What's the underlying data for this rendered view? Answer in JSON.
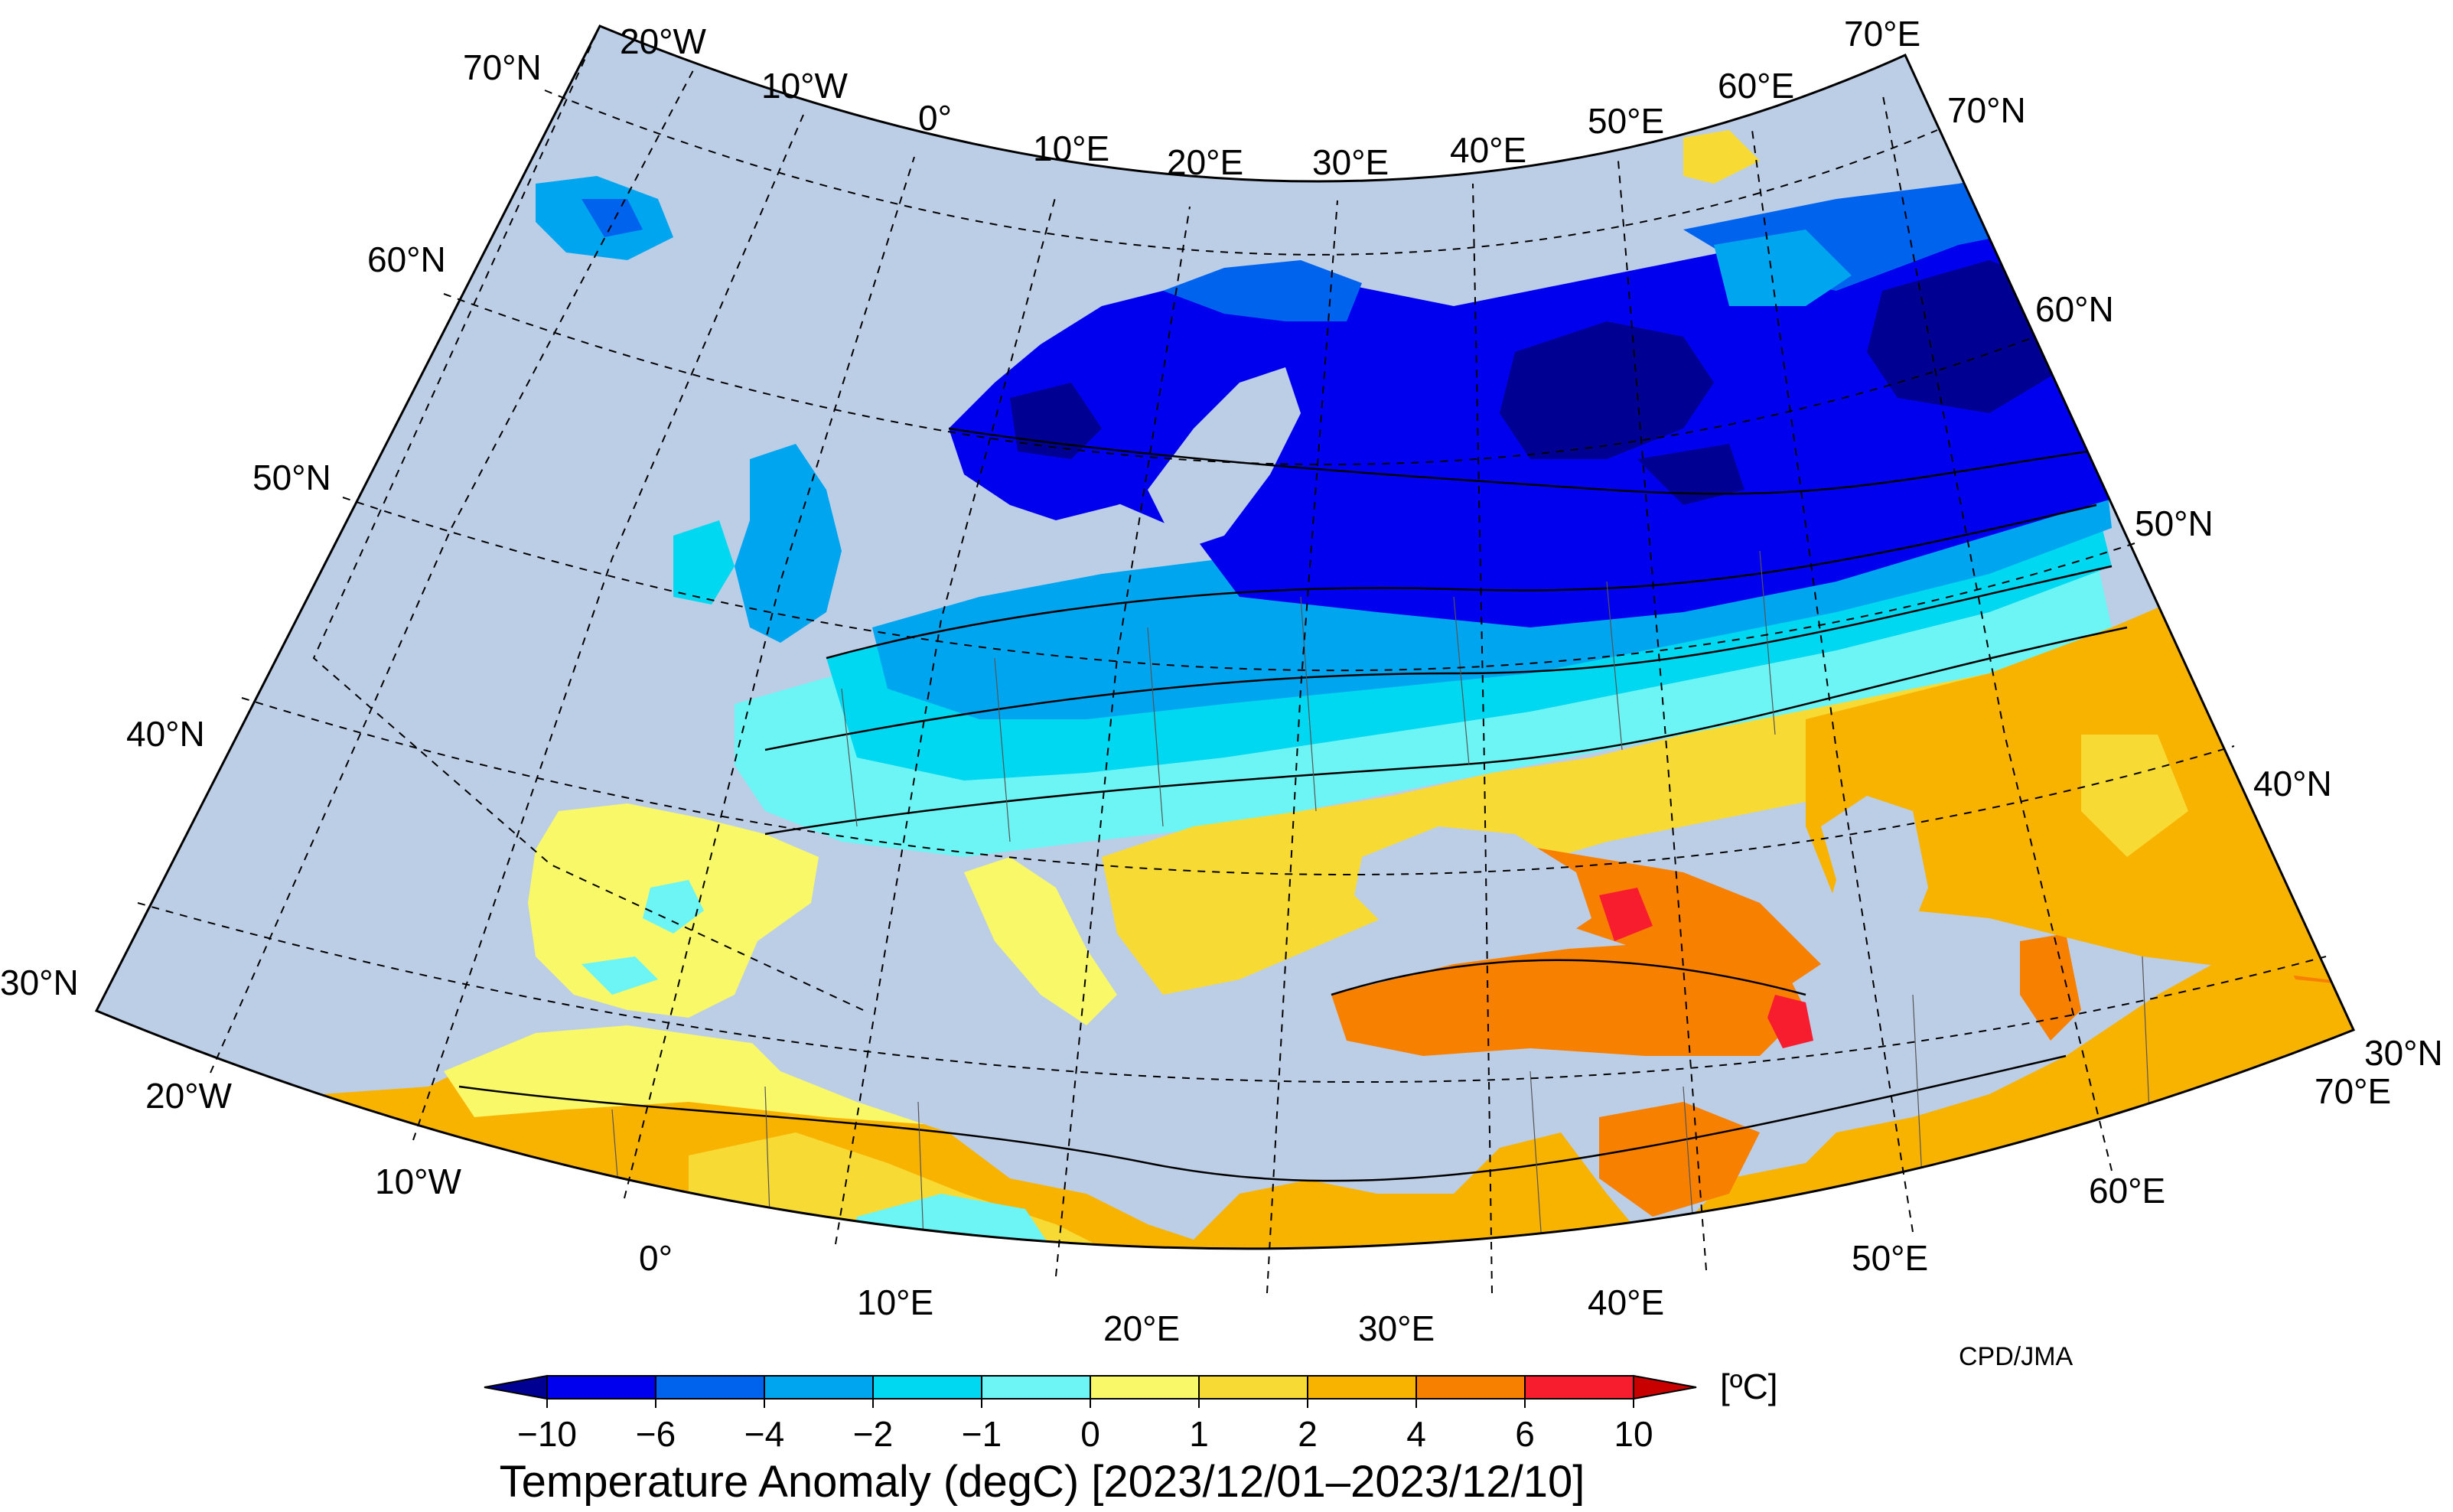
{
  "map": {
    "lon_labels_top": [
      "20°W",
      "10°W",
      "0°",
      "10°E",
      "20°E",
      "30°E",
      "40°E",
      "50°E",
      "60°E",
      "70°E"
    ],
    "lon_labels_bottom": [
      "20°W",
      "10°W",
      "0°",
      "10°E",
      "20°E",
      "30°E",
      "40°E",
      "50°E",
      "60°E",
      "70°E"
    ],
    "lat_labels_left": [
      "70°N",
      "60°N",
      "50°N",
      "40°N",
      "30°N"
    ],
    "lat_labels_right": [
      "70°N",
      "60°N",
      "50°N",
      "40°N",
      "30°N"
    ],
    "credit": "CPD/JMA",
    "sea_color": "#bccde6",
    "land_colors": {
      "lt_-10": "#000093",
      "-10_-6": "#0000ee",
      "-6_-4": "#0063ee",
      "-4_-2": "#00a5f0",
      "-2_-1": "#00d7f0",
      "-1_0": "#6df4f4",
      "0_1": "#f8f869",
      "1_2": "#f8da35",
      "2_4": "#f8b300",
      "4_6": "#f88000",
      "6_10": "#f81d2e",
      "gt_10": "#c80000"
    }
  },
  "colorbar": {
    "unit": "[ºC]",
    "ticks": [
      "−10",
      "−6",
      "−4",
      "−2",
      "−1",
      "0",
      "1",
      "2",
      "4",
      "6",
      "10"
    ],
    "colors": [
      "#000093",
      "#0000ee",
      "#0063ee",
      "#00a5f0",
      "#00d7f0",
      "#6df4f4",
      "#f8f869",
      "#f8da35",
      "#f8b300",
      "#f88000",
      "#f81d2e",
      "#c80000"
    ]
  },
  "title": "Temperature Anomaly (degC) [2023/12/01–2023/12/10]"
}
